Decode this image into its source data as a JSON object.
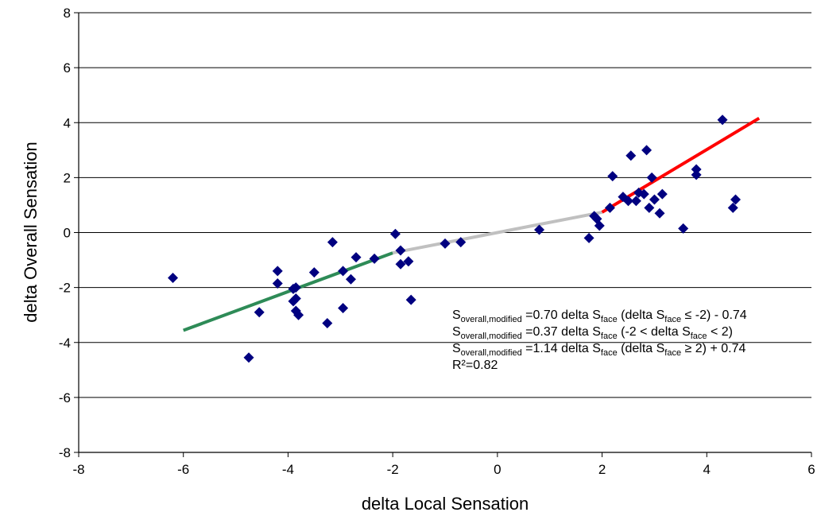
{
  "chart_data": {
    "type": "scatter",
    "xlabel": "delta Local Sensation",
    "ylabel": "delta Overall Sensation",
    "xlim": [
      -8,
      6
    ],
    "ylim": [
      -8,
      8
    ],
    "x_ticks": [
      "-8",
      "-6",
      "-4",
      "-2",
      "0",
      "2",
      "4",
      "6"
    ],
    "y_ticks": [
      "8",
      "6",
      "4",
      "2",
      "0",
      "-2",
      "-4",
      "-6",
      "-8"
    ],
    "grid": "horizontal",
    "marker_color": "#000080",
    "points": [
      [
        -6.2,
        -1.65
      ],
      [
        -4.75,
        -4.55
      ],
      [
        -4.55,
        -2.9
      ],
      [
        -4.2,
        -1.4
      ],
      [
        -4.2,
        -1.85
      ],
      [
        -3.9,
        -2.05
      ],
      [
        -3.85,
        -2.0
      ],
      [
        -3.9,
        -2.5
      ],
      [
        -3.85,
        -2.4
      ],
      [
        -3.85,
        -2.85
      ],
      [
        -3.8,
        -3.0
      ],
      [
        -3.5,
        -1.45
      ],
      [
        -3.25,
        -3.3
      ],
      [
        -3.15,
        -0.35
      ],
      [
        -2.95,
        -1.4
      ],
      [
        -2.95,
        -2.75
      ],
      [
        -2.8,
        -1.7
      ],
      [
        -2.7,
        -0.9
      ],
      [
        -2.35,
        -0.95
      ],
      [
        -1.95,
        -0.05
      ],
      [
        -1.85,
        -0.65
      ],
      [
        -1.85,
        -1.15
      ],
      [
        -1.7,
        -1.05
      ],
      [
        -1.65,
        -2.45
      ],
      [
        -1.0,
        -0.4
      ],
      [
        -0.7,
        -0.35
      ],
      [
        0.8,
        0.1
      ],
      [
        1.75,
        -0.2
      ],
      [
        1.85,
        0.6
      ],
      [
        1.9,
        0.5
      ],
      [
        1.95,
        0.25
      ],
      [
        2.15,
        0.9
      ],
      [
        2.2,
        2.05
      ],
      [
        2.4,
        1.3
      ],
      [
        2.5,
        1.15
      ],
      [
        2.55,
        2.8
      ],
      [
        2.65,
        1.15
      ],
      [
        2.7,
        1.45
      ],
      [
        2.8,
        1.4
      ],
      [
        2.85,
        3.0
      ],
      [
        2.9,
        0.9
      ],
      [
        2.95,
        2.0
      ],
      [
        3.0,
        1.2
      ],
      [
        3.1,
        0.7
      ],
      [
        3.15,
        1.4
      ],
      [
        3.55,
        0.15
      ],
      [
        3.8,
        2.1
      ],
      [
        3.8,
        2.3
      ],
      [
        4.3,
        4.1
      ],
      [
        4.5,
        0.9
      ],
      [
        4.55,
        1.2
      ]
    ],
    "fit_lines": [
      {
        "color": "#2e8b57",
        "x": [
          -6,
          -2
        ],
        "y": [
          -3.56,
          -0.74
        ]
      },
      {
        "color": "#c0c0c0",
        "x": [
          -2,
          2
        ],
        "y": [
          -0.74,
          0.74
        ]
      },
      {
        "color": "#ff0000",
        "x": [
          2,
          5
        ],
        "y": [
          0.74,
          4.16
        ]
      }
    ],
    "annotations": [
      {
        "parts": [
          [
            "S",
            ""
          ],
          [
            "overall,modified",
            "sub"
          ],
          [
            " =0.70 delta S",
            ""
          ],
          [
            "face",
            "sub"
          ],
          [
            " (delta S",
            ""
          ],
          [
            "face",
            "sub"
          ],
          [
            " ≤ -2) - 0.74",
            ""
          ]
        ]
      },
      {
        "parts": [
          [
            "S",
            ""
          ],
          [
            "overall,modified",
            "sub"
          ],
          [
            " =0.37 delta S",
            ""
          ],
          [
            "face",
            "sub"
          ],
          [
            " (-2 < delta S",
            ""
          ],
          [
            "face",
            "sub"
          ],
          [
            " < 2)",
            ""
          ]
        ]
      },
      {
        "parts": [
          [
            "S",
            ""
          ],
          [
            "overall,modified",
            "sub"
          ],
          [
            " =1.14 delta S",
            ""
          ],
          [
            "face",
            "sub"
          ],
          [
            " (delta S",
            ""
          ],
          [
            "face",
            "sub"
          ],
          [
            " ≥ 2) + 0.74",
            ""
          ]
        ]
      },
      {
        "parts": [
          [
            "R²=0.82",
            ""
          ]
        ]
      }
    ]
  }
}
